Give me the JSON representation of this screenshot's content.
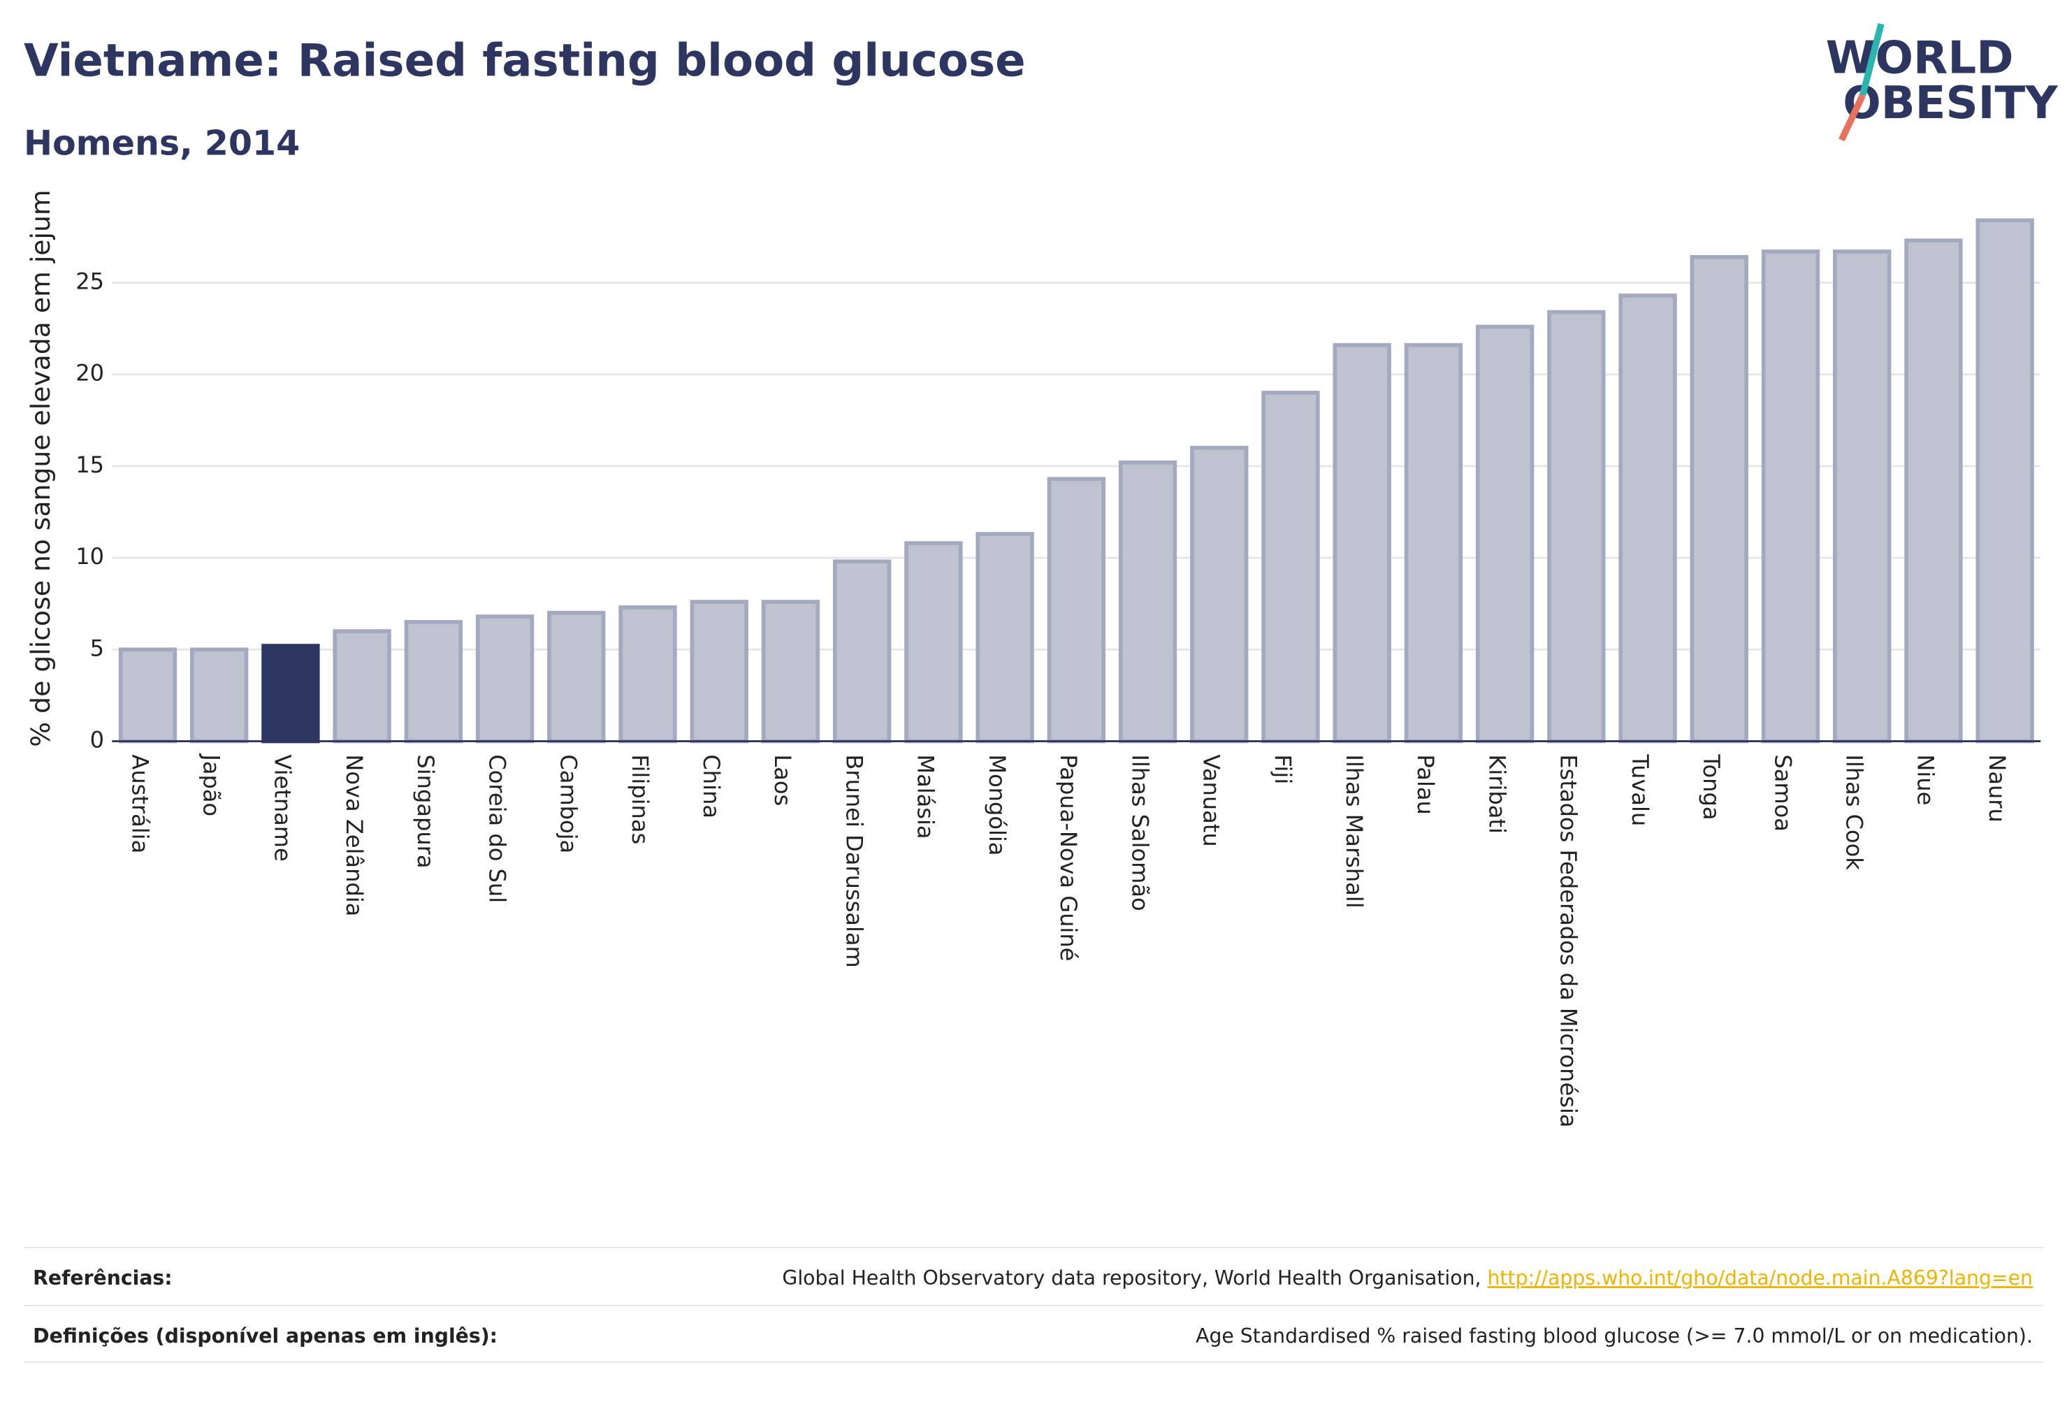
{
  "chart_data": {
    "type": "bar",
    "title": "Vietname: Raised fasting blood glucose",
    "subtitle": "Homens, 2014",
    "y_label": "% de glicose no sangue elevada em jejum",
    "logo": [
      "WORLD",
      "OBESITY"
    ],
    "categories": [
      "Austrália",
      "Japão",
      "Vietname",
      "Nova Zelândia",
      "Singapura",
      "Coreia do Sul",
      "Camboja",
      "Filipinas",
      "China",
      "Laos",
      "Brunei Darussalam",
      "Malásia",
      "Mongólia",
      "Papua-Nova Guiné",
      "Ilhas Salomão",
      "Vanuatu",
      "Fiji",
      "Ilhas Marshall",
      "Palau",
      "Kiribati",
      "Estados Federados da Micronésia",
      "Tuvalu",
      "Tonga",
      "Samoa",
      "Ilhas Cook",
      "Niue",
      "Nauru"
    ],
    "values": [
      5.0,
      5.0,
      5.2,
      6.0,
      6.5,
      6.8,
      7.0,
      7.3,
      7.6,
      7.6,
      9.8,
      10.8,
      11.3,
      14.3,
      15.2,
      16.0,
      19.0,
      21.6,
      21.6,
      22.6,
      23.4,
      24.3,
      26.4,
      26.7,
      26.7,
      27.3,
      28.4
    ],
    "color": "#bfc3d0",
    "highlight": {
      "index": 2,
      "color": "#2d3561"
    },
    "ylim": [
      0,
      28.9
    ],
    "yticks": [
      0,
      5,
      10,
      15,
      20,
      25
    ],
    "grid": true
  },
  "footer": {
    "references": {
      "label": "Referências:",
      "text": "Global Health Observatory data repository, World Health Organisation, ",
      "link": "http://apps.who.int/gho/data/node.main.A869?lang=en"
    },
    "definitions": {
      "label": "Definições (disponível apenas em inglês):",
      "text": "Age Standardised % raised fasting blood glucose (>= 7.0 mmol/L or on medication)."
    }
  }
}
